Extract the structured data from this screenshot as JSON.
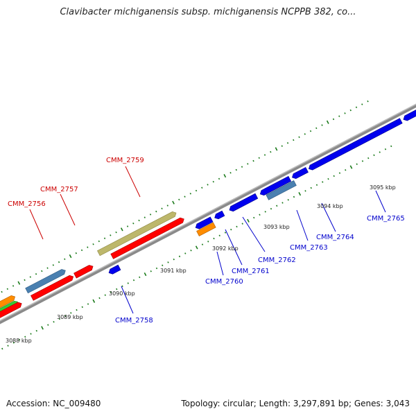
{
  "title": "Clavibacter michiganensis subsp. michiganensis NCPPB 382, co...",
  "footer": {
    "accession": "Accession: NC_009480",
    "summary": "Topology: circular; Length: 3,297,891 bp; Genes: 3,043"
  },
  "colors": {
    "forward_label": "#cc0000",
    "reverse_label": "#0000cc",
    "red_gene": "#ff0000",
    "blue_gene": "#0000ee",
    "steel_gene": "#4a80b0",
    "khaki_gene": "#bdb76b",
    "orange_gene": "#ff8c00",
    "green_gene": "#33cc33",
    "backbone": "#888888",
    "tick": "#1a7a1a"
  },
  "kbp_labels": [
    "3088 kbp",
    "3089 kbp",
    "3090 kbp",
    "3091 kbp",
    "3092 kbp",
    "3093 kbp",
    "3094 kbp",
    "3095 kbp"
  ],
  "gene_labels": {
    "forward": [
      "CMM_2756",
      "CMM_2757",
      "CMM_2759"
    ],
    "reverse": [
      "CMM_2758",
      "CMM_2760",
      "CMM_2761",
      "CMM_2762",
      "CMM_2763",
      "CMM_2764",
      "CMM_2765"
    ]
  }
}
